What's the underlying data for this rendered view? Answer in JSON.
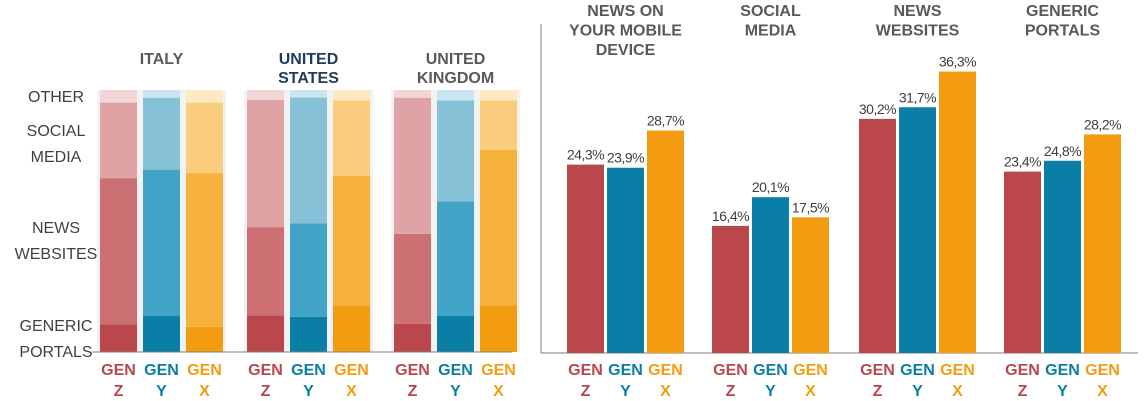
{
  "colors": {
    "gen_z": "#b9474b",
    "gen_y": "#0a7ea4",
    "gen_x": "#f39c12",
    "axis": "#7f7f7f"
  },
  "left_panel": {
    "category_labels": [
      "OTHER",
      "SOCIAL\nMEDIA",
      "NEWS\nWEBSITES",
      "GENERIC\nPORTALS"
    ],
    "groups": [
      {
        "title": "ITALY",
        "gen_labels": [
          "GEN\nZ",
          "GEN\nY",
          "GEN\nX"
        ],
        "stacks": [
          {
            "generic": 11,
            "news": 58,
            "social": 30,
            "other": 5
          },
          {
            "generic": 14,
            "news": 57,
            "social": 28,
            "other": 3
          },
          {
            "generic": 10,
            "news": 61,
            "social": 28,
            "other": 5
          }
        ]
      },
      {
        "title": "UNITED\nSTATES",
        "gen_labels": [
          "GEN\nZ",
          "GEN\nY",
          "GEN\nX"
        ],
        "stacks": [
          {
            "generic": 15,
            "news": 36,
            "social": 52,
            "other": 4
          },
          {
            "generic": 14,
            "news": 37,
            "social": 50,
            "other": 3
          },
          {
            "generic": 18,
            "news": 50,
            "social": 29,
            "other": 4
          }
        ]
      },
      {
        "title": "UNITED\nKINGDOM",
        "gen_labels": [
          "GEN\nZ",
          "GEN\nY",
          "GEN\nX"
        ],
        "stacks": [
          {
            "generic": 11,
            "news": 35,
            "social": 53,
            "other": 3
          },
          {
            "generic": 14,
            "news": 44,
            "social": 39,
            "other": 4
          },
          {
            "generic": 18,
            "news": 60,
            "social": 19,
            "other": 4
          }
        ]
      }
    ]
  },
  "chart_data": {
    "type": "bar",
    "ylim": [
      0,
      40
    ],
    "groups": [
      {
        "title": "NEWS ON\nYOUR MOBILE\nDEVICE",
        "categories": [
          "GEN\nZ",
          "GEN\nY",
          "GEN\nX"
        ],
        "values": [
          24.3,
          23.9,
          28.7
        ],
        "labels": [
          "24,3%",
          "23,9%",
          "28,7%"
        ]
      },
      {
        "title": "SOCIAL\nMEDIA",
        "categories": [
          "GEN\nZ",
          "GEN\nY",
          "GEN\nX"
        ],
        "values": [
          16.4,
          20.1,
          17.5
        ],
        "labels": [
          "16,4%",
          "20,1%",
          "17,5%"
        ]
      },
      {
        "title": "NEWS\nWEBSITES",
        "categories": [
          "GEN\nZ",
          "GEN\nY",
          "GEN\nX"
        ],
        "values": [
          30.2,
          31.7,
          36.3
        ],
        "labels": [
          "30,2%",
          "31,7%",
          "36,3%"
        ]
      },
      {
        "title": "GENERIC\nPORTALS",
        "categories": [
          "GEN\nZ",
          "GEN\nY",
          "GEN\nX"
        ],
        "values": [
          23.4,
          24.8,
          28.2
        ],
        "labels": [
          "23,4%",
          "24,8%",
          "28,2%"
        ]
      }
    ]
  }
}
